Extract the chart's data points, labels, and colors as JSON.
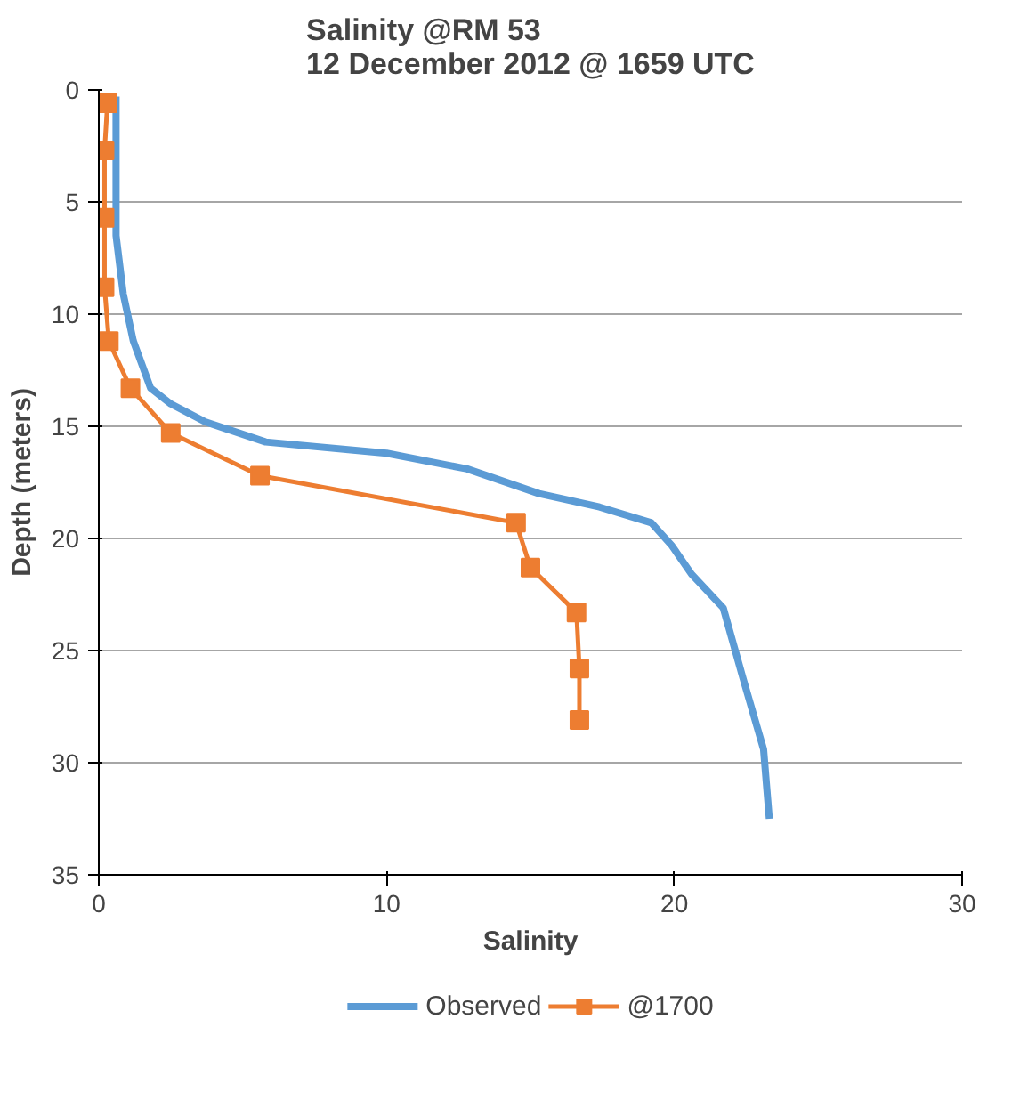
{
  "chart_data": {
    "type": "line",
    "title": "Salinity @RM 53\n12 December 2012 @ 1659 UTC",
    "xlabel": "Salinity",
    "ylabel": "Depth (meters)",
    "xlim": [
      0,
      30
    ],
    "xticks": [
      0,
      10,
      20,
      30
    ],
    "ylim": [
      35,
      0
    ],
    "yticks": [
      0,
      5,
      10,
      15,
      20,
      25,
      30,
      35
    ],
    "grid": "y",
    "legend": "bottom",
    "series": [
      {
        "name": "Observed",
        "color": "#5b9bd5",
        "marker": "none",
        "x": [
          0.6,
          0.6,
          0.85,
          1.2,
          1.8,
          2.5,
          3.7,
          5.8,
          10,
          12.8,
          15.3,
          17.4,
          19.2,
          19.9,
          20.6,
          21.7,
          22.4,
          23.1,
          23.3
        ],
        "values": [
          0.3,
          6.5,
          9.1,
          11.2,
          13.3,
          14,
          14.8,
          15.7,
          16.2,
          16.9,
          18,
          18.6,
          19.3,
          20.3,
          21.6,
          23.1,
          26.3,
          29.4,
          32.5
        ]
      },
      {
        "name": "@1700",
        "color": "#ed7d31",
        "marker": "square",
        "x": [
          0.3,
          0.2,
          0.2,
          0.2,
          0.35,
          1.1,
          2.5,
          5.6,
          14.5,
          15,
          16.6,
          16.7,
          16.7
        ],
        "values": [
          0.6,
          2.7,
          5.7,
          8.8,
          11.2,
          13.3,
          15.3,
          17.2,
          19.3,
          21.3,
          23.3,
          25.8,
          28.1
        ]
      }
    ]
  }
}
